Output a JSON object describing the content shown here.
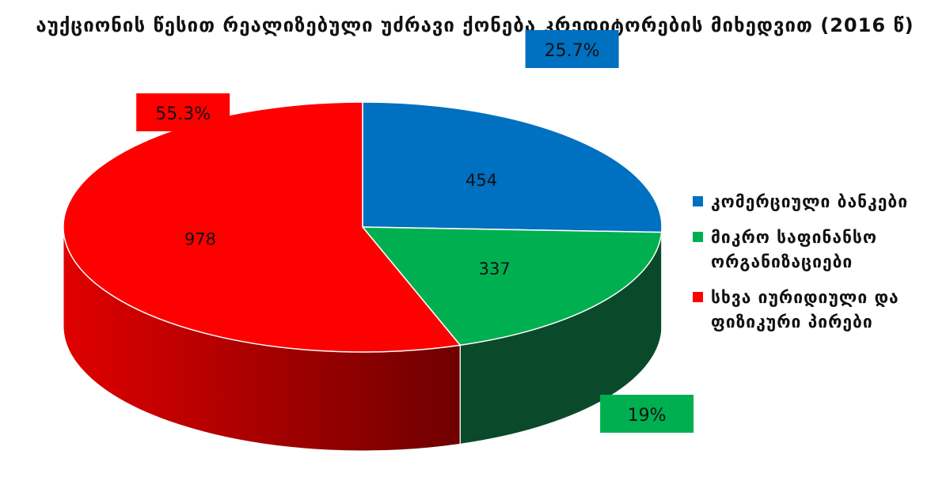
{
  "chart_data": {
    "type": "pie",
    "title": "აუქციონის წესით რეალიზებული უძრავი ქონება კრედიტორების მიხედვით (2016 წ)",
    "categories": [
      "კომერციული ბანკები",
      "მიკრო საფინანსო ორგანიზაციები",
      "სხვა იურიდიული და ფიზიკური პირები"
    ],
    "values": [
      454,
      337,
      978
    ],
    "percent_labels": [
      "25.7%",
      "19%",
      "55.3%"
    ],
    "colors": [
      "#0070c0",
      "#00b050",
      "#ff0000"
    ],
    "side_colors": [
      "#003a66",
      "#0a4a2a",
      "#8b0000"
    ],
    "legend_position": "right",
    "style": "3d"
  }
}
